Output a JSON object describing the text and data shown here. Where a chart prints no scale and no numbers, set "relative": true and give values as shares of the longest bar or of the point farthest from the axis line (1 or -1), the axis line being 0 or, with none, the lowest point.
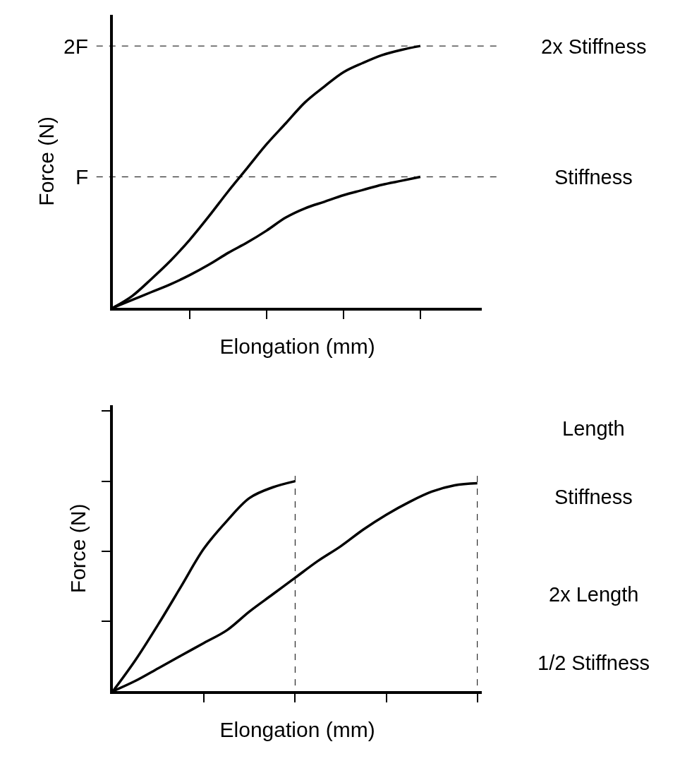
{
  "chart_data": [
    {
      "type": "line",
      "xlabel": "Elongation (mm)",
      "ylabel": "Force (N)",
      "relative": true,
      "categories": [
        null,
        null,
        null,
        null,
        null,
        null,
        null,
        null,
        null,
        null,
        null,
        null,
        null,
        null,
        null,
        null,
        null
      ],
      "series": [
        {
          "color": "#000000",
          "values": [
            0,
            0.045,
            0.11,
            0.18,
            0.26,
            0.35,
            0.445,
            0.535,
            0.625,
            0.705,
            0.785,
            0.845,
            0.9,
            0.935,
            0.965,
            0.985,
            1.0
          ]
        },
        {
          "color": "#000000",
          "values": [
            0,
            0.03,
            0.06,
            0.09,
            0.125,
            0.165,
            0.21,
            0.25,
            0.295,
            0.345,
            0.38,
            0.405,
            0.43,
            0.45,
            0.47,
            0.485,
            0.5
          ]
        }
      ],
      "ref_lines": [
        {
          "axis": "y",
          "value": 0.5,
          "label": "F",
          "color": "#000000",
          "line_style": "dashed"
        },
        {
          "axis": "y",
          "value": 1,
          "label": "2F",
          "color": "#000000",
          "line_style": "dashed"
        }
      ],
      "annotations": [
        "2x Stiffness",
        "Stiffness"
      ],
      "tick_labels": false,
      "marker": "none",
      "line_style": "solid"
    },
    {
      "type": "line",
      "xlabel": "Elongation (mm)",
      "ylabel": "Force (N)",
      "relative": true,
      "categories": [
        null,
        null,
        null,
        null,
        null,
        null,
        null,
        null,
        null,
        null,
        null,
        null,
        null,
        null,
        null,
        null,
        null
      ],
      "series": [
        {
          "color": "#000000",
          "values": [
            0,
            0.15,
            0.32,
            0.5,
            0.68,
            0.81,
            0.92,
            0.97,
            1.0,
            null,
            null,
            null,
            null,
            null,
            null,
            null,
            null
          ]
        },
        {
          "color": "#000000",
          "values": [
            0,
            0.05,
            0.11,
            0.17,
            0.23,
            0.29,
            0.38,
            0.46,
            0.54,
            0.62,
            0.69,
            0.77,
            0.84,
            0.9,
            0.95,
            0.98,
            0.99
          ]
        }
      ],
      "annotations": [
        "Length",
        "Stiffness",
        "2x Length",
        "1/2 Stiffness"
      ],
      "tick_labels": false,
      "marker": "none",
      "line_style": "solid"
    }
  ]
}
